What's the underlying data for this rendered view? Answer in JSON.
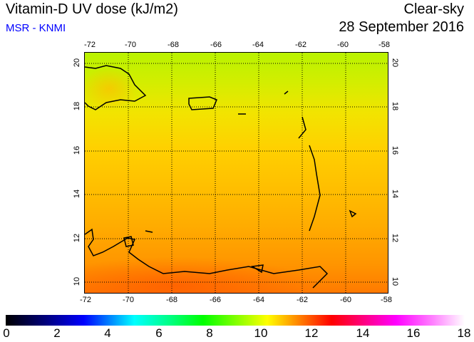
{
  "header": {
    "title": "Vitamin-D UV dose (kJ/m2)",
    "source": "MSR - KNMI",
    "sky": "Clear-sky",
    "date": "28 September 2016"
  },
  "map": {
    "lon_labels": [
      "-72",
      "-70",
      "-68",
      "-66",
      "-64",
      "-62",
      "-60",
      "-58"
    ],
    "lat_labels": [
      "20",
      "18",
      "16",
      "14",
      "12",
      "10"
    ]
  },
  "colorbar": {
    "labels": [
      "0",
      "2",
      "4",
      "6",
      "8",
      "10",
      "12",
      "14",
      "16",
      "18"
    ],
    "min": 0,
    "max": 18
  }
}
